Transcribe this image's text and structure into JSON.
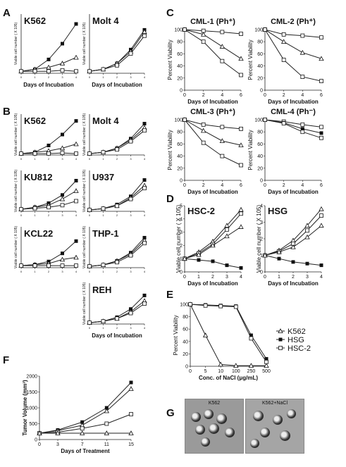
{
  "panel_labels": [
    "A",
    "B",
    "C",
    "D",
    "E",
    "F",
    "G"
  ],
  "common": {
    "viable_ylabel": "Viable cell number ( X 10",
    "viable_ylabel_exp": "5",
    "viable_ylabel_close": ")",
    "days_incubation": "Days of Incubation",
    "percent_viability": "Percent Viability"
  },
  "legend_E": [
    {
      "marker": "triangle-open",
      "label": "K562"
    },
    {
      "marker": "square-filled",
      "label": "HSG"
    },
    {
      "marker": "square-open",
      "label": "HSC-2"
    }
  ],
  "panel_G": {
    "left_caption": "K562",
    "right_caption": "K562+NaCl"
  },
  "chart_data": [
    {
      "id": "A1",
      "panel": "A",
      "type": "line",
      "title": "K562",
      "x": [
        0,
        1,
        2,
        3,
        4
      ],
      "xlabel": "Days of Incubation",
      "ylim": [
        0,
        30
      ],
      "series": [
        {
          "marker": "filled",
          "values": [
            1,
            2,
            7,
            15,
            25
          ]
        },
        {
          "marker": "open",
          "values": [
            1,
            2,
            3,
            5,
            8
          ]
        },
        {
          "marker": "open",
          "values": [
            1,
            1,
            1,
            1.5,
            1
          ]
        }
      ]
    },
    {
      "id": "A2",
      "panel": "A",
      "type": "line",
      "title": "Molt 4",
      "x": [
        0,
        1,
        2,
        3,
        4
      ],
      "xlabel": "Days of Incubation",
      "ylim": [
        0,
        30
      ],
      "series": [
        {
          "marker": "filled",
          "values": [
            1,
            2,
            5,
            12,
            22
          ]
        },
        {
          "marker": "open",
          "values": [
            1,
            2,
            5,
            11,
            21
          ]
        },
        {
          "marker": "open",
          "values": [
            1,
            2,
            4,
            10,
            19
          ]
        }
      ]
    },
    {
      "id": "B1",
      "panel": "B",
      "type": "line",
      "title": "K562",
      "x": [
        0,
        1,
        2,
        3,
        4
      ],
      "ylim": [
        0,
        30
      ],
      "series": [
        {
          "marker": "filled",
          "values": [
            1,
            2,
            7,
            15,
            25
          ]
        },
        {
          "marker": "open",
          "values": [
            1,
            2,
            3,
            5,
            8
          ]
        },
        {
          "marker": "open",
          "values": [
            1,
            1,
            1,
            1.5,
            1
          ]
        }
      ]
    },
    {
      "id": "B2",
      "panel": "B",
      "type": "line",
      "title": "Molt 4",
      "x": [
        0,
        1,
        2,
        3,
        4
      ],
      "ylim": [
        0,
        30
      ],
      "series": [
        {
          "marker": "filled",
          "values": [
            1,
            2,
            5,
            12,
            23
          ]
        },
        {
          "marker": "open",
          "values": [
            1,
            2,
            5,
            11,
            20
          ]
        },
        {
          "marker": "open",
          "values": [
            1,
            2,
            4,
            10,
            18
          ]
        }
      ]
    },
    {
      "id": "B3",
      "panel": "B",
      "type": "line",
      "title": "KU812",
      "x": [
        0,
        1,
        2,
        3,
        4
      ],
      "ylim": [
        0,
        20
      ],
      "series": [
        {
          "marker": "filled",
          "values": [
            1,
            2,
            4,
            8,
            15
          ]
        },
        {
          "marker": "open",
          "values": [
            1,
            2,
            3,
            6,
            10
          ]
        },
        {
          "marker": "open",
          "values": [
            1,
            1.5,
            2,
            3,
            5
          ]
        }
      ]
    },
    {
      "id": "B4",
      "panel": "B",
      "type": "line",
      "title": "U937",
      "x": [
        0,
        1,
        2,
        3,
        4
      ],
      "ylim": [
        0,
        30
      ],
      "series": [
        {
          "marker": "filled",
          "values": [
            1,
            2,
            5,
            11,
            23
          ]
        },
        {
          "marker": "open",
          "values": [
            1,
            2,
            4,
            10,
            19
          ]
        },
        {
          "marker": "open",
          "values": [
            1,
            2,
            4,
            9,
            17
          ]
        }
      ]
    },
    {
      "id": "B5",
      "panel": "B",
      "type": "line",
      "title": "KCL22",
      "x": [
        0,
        1,
        2,
        3,
        4
      ],
      "ylim": [
        0,
        20
      ],
      "series": [
        {
          "marker": "filled",
          "values": [
            1,
            1.5,
            3,
            7,
            13
          ]
        },
        {
          "marker": "open",
          "values": [
            1,
            1.5,
            2,
            4,
            5
          ]
        },
        {
          "marker": "open",
          "values": [
            1,
            1,
            1,
            1,
            1
          ]
        }
      ]
    },
    {
      "id": "B6",
      "panel": "B",
      "type": "line",
      "title": "THP-1",
      "x": [
        0,
        1,
        2,
        3,
        4
      ],
      "ylim": [
        0,
        30
      ],
      "series": [
        {
          "marker": "filled",
          "values": [
            1,
            2,
            5,
            11,
            22
          ]
        },
        {
          "marker": "open",
          "values": [
            1,
            2,
            5,
            10,
            20
          ]
        },
        {
          "marker": "open",
          "values": [
            1,
            2,
            4,
            9,
            18
          ]
        }
      ]
    },
    {
      "id": "B7",
      "panel": "B",
      "type": "line",
      "title": "REH",
      "x": [
        0,
        1,
        2,
        3,
        4
      ],
      "xlabel": "Days of Incubation",
      "ylim": [
        0,
        30
      ],
      "series": [
        {
          "marker": "filled",
          "values": [
            1,
            2,
            5,
            11,
            21
          ]
        },
        {
          "marker": "open",
          "values": [
            1,
            2,
            4,
            9,
            17
          ]
        },
        {
          "marker": "open",
          "values": [
            1,
            2,
            4,
            8,
            15
          ]
        }
      ]
    },
    {
      "id": "C1",
      "panel": "C",
      "type": "line",
      "title": "CML-1 (Ph⁺)",
      "x": [
        0,
        2,
        4,
        6
      ],
      "xticks": [
        0,
        2,
        4,
        6
      ],
      "yticks": [
        0,
        20,
        40,
        60,
        80,
        100
      ],
      "ylim": [
        0,
        100
      ],
      "xlabel": "Days of Incubation",
      "ylabel": "Percent Viability",
      "series": [
        {
          "marker": "open",
          "values": [
            100,
            98,
            96,
            93
          ]
        },
        {
          "marker": "open",
          "values": [
            100,
            92,
            72,
            52
          ]
        },
        {
          "marker": "open",
          "values": [
            100,
            80,
            48,
            25
          ]
        }
      ]
    },
    {
      "id": "C2",
      "panel": "C",
      "type": "line",
      "title": "CML-2 (Ph⁺)",
      "x": [
        0,
        2,
        4,
        6
      ],
      "xticks": [
        0,
        2,
        4,
        6
      ],
      "yticks": [
        0,
        20,
        40,
        60,
        80,
        100
      ],
      "ylim": [
        0,
        100
      ],
      "xlabel": "Days of Incubation",
      "ylabel": "Percent Viability",
      "series": [
        {
          "marker": "open",
          "values": [
            100,
            92,
            90,
            87
          ]
        },
        {
          "marker": "open",
          "values": [
            100,
            80,
            62,
            52
          ]
        },
        {
          "marker": "open",
          "values": [
            100,
            50,
            22,
            15
          ]
        }
      ]
    },
    {
      "id": "C3",
      "panel": "C",
      "type": "line",
      "title": "CML-3 (Ph⁺)",
      "x": [
        0,
        2,
        4,
        6
      ],
      "xticks": [
        0,
        2,
        4,
        6
      ],
      "yticks": [
        0,
        20,
        40,
        60,
        80,
        100
      ],
      "ylim": [
        0,
        100
      ],
      "xlabel": "Days of Incubation",
      "ylabel": "Percent Viability",
      "series": [
        {
          "marker": "open",
          "values": [
            100,
            92,
            88,
            85
          ]
        },
        {
          "marker": "open",
          "values": [
            100,
            82,
            65,
            58
          ]
        },
        {
          "marker": "open",
          "values": [
            100,
            62,
            40,
            25
          ]
        }
      ]
    },
    {
      "id": "C4",
      "panel": "C",
      "type": "line",
      "title": "CML-4 (Ph⁻)",
      "x": [
        0,
        2,
        4,
        6
      ],
      "xticks": [
        0,
        2,
        4,
        6
      ],
      "yticks": [
        0,
        20,
        40,
        60,
        80,
        100
      ],
      "ylim": [
        0,
        100
      ],
      "xlabel": "Days of Incubation",
      "ylabel": "Percent Viability",
      "series": [
        {
          "marker": "open",
          "values": [
            100,
            97,
            92,
            88
          ]
        },
        {
          "marker": "filled",
          "values": [
            100,
            95,
            85,
            78
          ]
        },
        {
          "marker": "open",
          "values": [
            100,
            94,
            80,
            70
          ]
        }
      ]
    },
    {
      "id": "D1",
      "panel": "D",
      "type": "line",
      "title": "HSC-2",
      "x": [
        0,
        1,
        2,
        3,
        4
      ],
      "xticks": [
        0,
        1,
        2,
        3,
        4
      ],
      "yticks": [
        0,
        1,
        2,
        3,
        4,
        5
      ],
      "ylim": [
        0,
        5
      ],
      "xlabel": "Days of Incubation",
      "series": [
        {
          "marker": "filled",
          "values": [
            1,
            0.9,
            0.8,
            0.5,
            0.3
          ]
        },
        {
          "marker": "open",
          "values": [
            1,
            1.5,
            2.3,
            3.5,
            4.7
          ]
        },
        {
          "marker": "open",
          "values": [
            1,
            1.4,
            2.1,
            3.2,
            4.4
          ]
        },
        {
          "marker": "open",
          "values": [
            1,
            1.3,
            2.0,
            2.7,
            3.4
          ]
        }
      ]
    },
    {
      "id": "D2",
      "panel": "D",
      "type": "line",
      "title": "HSG",
      "x": [
        0,
        1,
        2,
        3,
        4
      ],
      "xticks": [
        0,
        1,
        2,
        3,
        4
      ],
      "yticks": [
        0,
        1,
        2,
        3,
        4
      ],
      "ylim": [
        0,
        4
      ],
      "xlabel": "Days of Incubation",
      "series": [
        {
          "marker": "filled",
          "values": [
            1,
            0.8,
            0.6,
            0.5,
            0.4
          ]
        },
        {
          "marker": "open",
          "values": [
            1,
            1.3,
            1.9,
            2.8,
            3.8
          ]
        },
        {
          "marker": "open",
          "values": [
            1,
            1.25,
            1.7,
            2.5,
            3.4
          ]
        },
        {
          "marker": "open",
          "values": [
            1,
            1.2,
            1.5,
            2.1,
            2.8
          ]
        }
      ]
    },
    {
      "id": "E",
      "panel": "E",
      "type": "line",
      "title": "",
      "x": [
        "0",
        "5",
        "10",
        "100",
        "250",
        "500"
      ],
      "yticks": [
        0,
        20,
        40,
        60,
        80,
        100
      ],
      "ylim": [
        0,
        100
      ],
      "xlabel": "Conc. of NaCl (μg/mL)",
      "ylabel": "Percent Viability",
      "series": [
        {
          "name": "K562",
          "marker": "triangle-open",
          "values": [
            100,
            50,
            3,
            1,
            1,
            1
          ]
        },
        {
          "name": "HSG",
          "marker": "square-filled",
          "values": [
            100,
            99,
            98,
            97,
            50,
            12
          ]
        },
        {
          "name": "HSC-2",
          "marker": "square-open",
          "values": [
            100,
            98,
            97,
            96,
            45,
            7
          ]
        }
      ]
    },
    {
      "id": "F",
      "panel": "F",
      "type": "line",
      "title": "",
      "x": [
        0,
        3,
        7,
        11,
        15
      ],
      "xticks": [
        0,
        3,
        7,
        11,
        15
      ],
      "yticks": [
        0,
        500,
        1000,
        1500,
        2000
      ],
      "ylim": [
        0,
        2000
      ],
      "xlabel": "Days of Treatment",
      "ylabel": "Tumor Volume (mm³)",
      "series": [
        {
          "marker": "filled",
          "values": [
            200,
            300,
            550,
            1000,
            1800
          ]
        },
        {
          "marker": "open",
          "values": [
            200,
            280,
            450,
            900,
            1600
          ]
        },
        {
          "marker": "open",
          "values": [
            200,
            230,
            350,
            500,
            800
          ]
        },
        {
          "marker": "open",
          "values": [
            200,
            200,
            200,
            200,
            200
          ]
        }
      ]
    }
  ]
}
